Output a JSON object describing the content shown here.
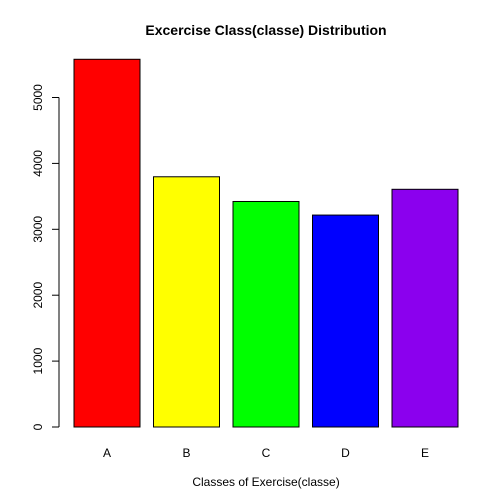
{
  "chart_data": {
    "type": "bar",
    "title": "Excercise Class(classe) Distribution",
    "xlabel": "Classes of Exercise(classe)",
    "ylabel": "",
    "categories": [
      "A",
      "B",
      "C",
      "D",
      "E"
    ],
    "values": [
      5580,
      3797,
      3422,
      3216,
      3607
    ],
    "colors": [
      "#ff0000",
      "#ffff00",
      "#00ff00",
      "#0000ff",
      "#8b00ee"
    ],
    "yticks": [
      0,
      1000,
      2000,
      3000,
      4000,
      5000
    ],
    "ylim": [
      0,
      5800
    ],
    "grid": false,
    "legend": "none"
  }
}
